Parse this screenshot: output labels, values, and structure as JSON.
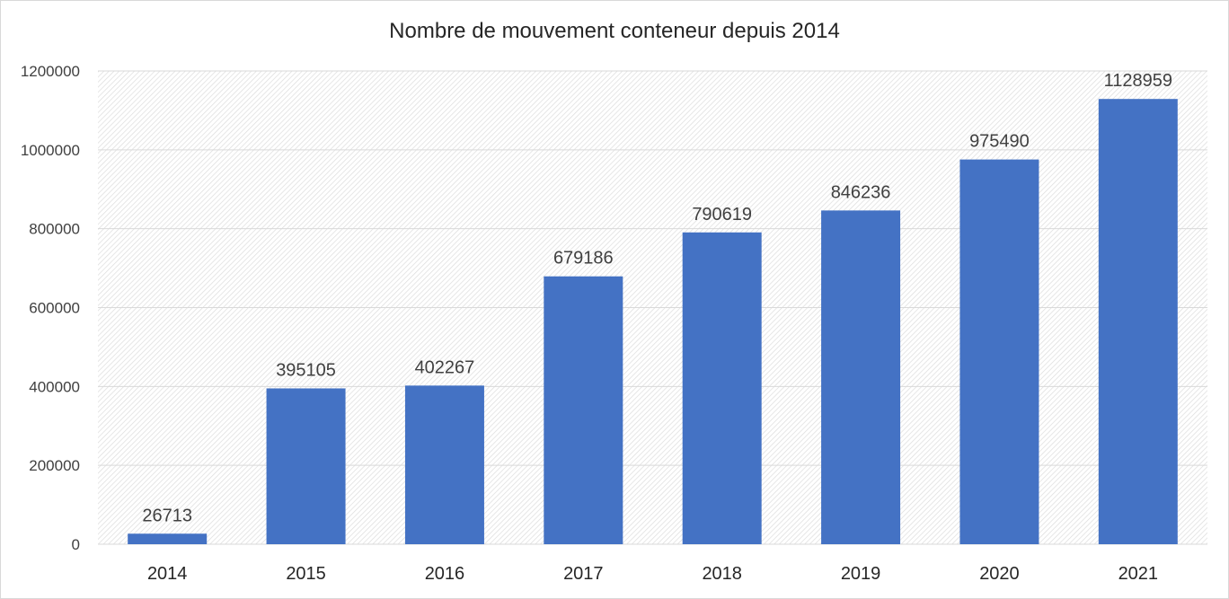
{
  "chart_data": {
    "type": "bar",
    "title": "Nombre de mouvement conteneur depuis 2014",
    "xlabel": "",
    "ylabel": "",
    "categories": [
      "2014",
      "2015",
      "2016",
      "2017",
      "2018",
      "2019",
      "2020",
      "2021"
    ],
    "values": [
      26713,
      395105,
      402267,
      679186,
      790619,
      846236,
      975490,
      1128959
    ],
    "ylim": [
      0,
      1200000
    ],
    "yticks": [
      0,
      200000,
      400000,
      600000,
      800000,
      1000000,
      1200000
    ],
    "grid": true,
    "legend": "none",
    "bar_color": "#4472C4",
    "data_labels": true
  }
}
